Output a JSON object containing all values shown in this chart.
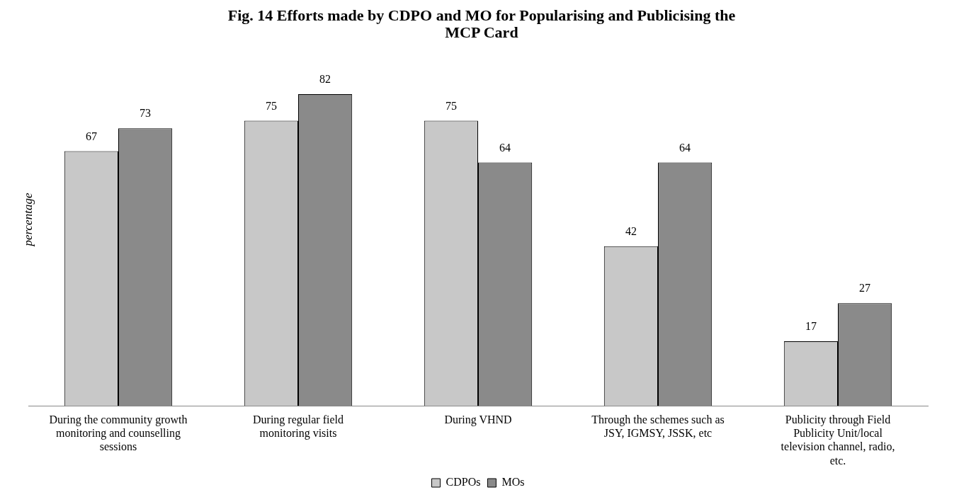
{
  "chart_data": {
    "type": "bar",
    "title": "Fig. 14  Efforts made by CDPO and MO for Popularising and Publicising the MCP Card",
    "ylabel": "percentage",
    "categories": [
      "During the community growth monitoring and counselling sessions",
      "During regular field monitoring visits",
      "During VHND",
      "Through the schemes such as JSY, IGMSY, JSSK, etc",
      "Publicity through Field Publicity Unit/local television channel, radio, etc."
    ],
    "series": [
      {
        "name": "CDPOs",
        "color": "#c8c8c8",
        "values": [
          67,
          75,
          75,
          42,
          17
        ]
      },
      {
        "name": "MOs",
        "color": "#8a8a8a",
        "values": [
          73,
          82,
          64,
          64,
          27
        ]
      }
    ],
    "data_labels": true,
    "grid": false,
    "legend": "bottom"
  }
}
